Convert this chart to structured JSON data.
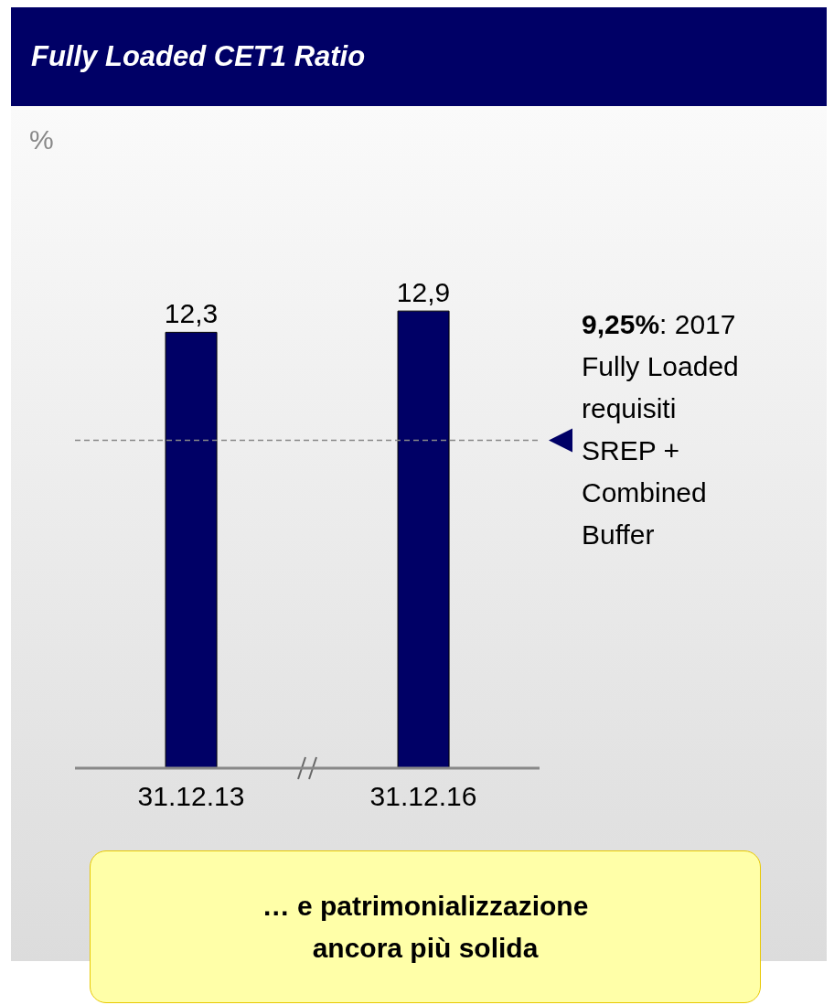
{
  "chart_data": {
    "type": "bar",
    "title": "Fully Loaded CET1 Ratio",
    "categories": [
      "31.12.13",
      "31.12.16"
    ],
    "values": [
      12.3,
      12.9
    ],
    "color": "#000066",
    "value_labels": [
      "12,3",
      "12,9"
    ],
    "tick_labels": "x",
    "ref_lines": [
      {
        "axis": "y",
        "value": 9.25,
        "label": "9,25%: 2017 Fully Loaded requisiti SREP + Combined Buffer",
        "color": "#888888",
        "line_style": "dashed"
      }
    ],
    "annotations": [
      "%",
      "… e patrimonializzazione\nancora più solida"
    ]
  }
}
